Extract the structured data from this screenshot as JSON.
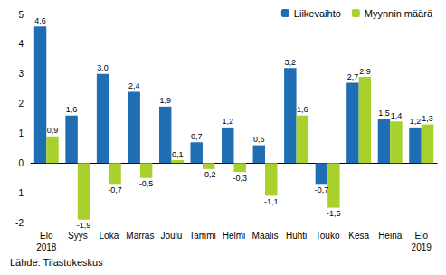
{
  "chart_data": {
    "type": "bar",
    "categories": [
      "Elo\n2018",
      "Syys",
      "Loka",
      "Marras",
      "Joulu",
      "Tammi",
      "Helmi",
      "Maalis",
      "Huhti",
      "Touko",
      "Kesä",
      "Heinä",
      "Elo\n2019"
    ],
    "series": [
      {
        "name": "Liikevaihto",
        "color": "#1f6eb4",
        "values": [
          4.6,
          1.6,
          3.0,
          2.4,
          1.9,
          0.7,
          1.2,
          0.6,
          3.2,
          -0.7,
          2.7,
          1.5,
          1.2
        ],
        "value_labels": [
          "4,6",
          "1,6",
          "3,0",
          "2,4",
          "1,9",
          "0,7",
          "1,2",
          "0,6",
          "3,2",
          "-0,7",
          "2,7",
          "1,5",
          "1,2"
        ]
      },
      {
        "name": "Myynnin määrä",
        "color": "#a8d12e",
        "values": [
          0.9,
          -1.9,
          -0.7,
          -0.5,
          0.1,
          -0.2,
          -0.3,
          -1.1,
          1.6,
          -1.5,
          2.9,
          1.4,
          1.3
        ],
        "value_labels": [
          "0,9",
          "-1,9",
          "-0,7",
          "-0,5",
          "0,1",
          "-0,2",
          "-0,3",
          "-1,1",
          "1,6",
          "-1,5",
          "2,9",
          "1,4",
          "1,3"
        ]
      }
    ],
    "ylim": [
      -2,
      5
    ],
    "yticks": [
      -2,
      -1,
      0,
      1,
      2,
      3,
      4,
      5
    ],
    "grid": false,
    "legend": "upper right",
    "data_labels": true,
    "source": "Lähde: Tilastokeskus"
  }
}
